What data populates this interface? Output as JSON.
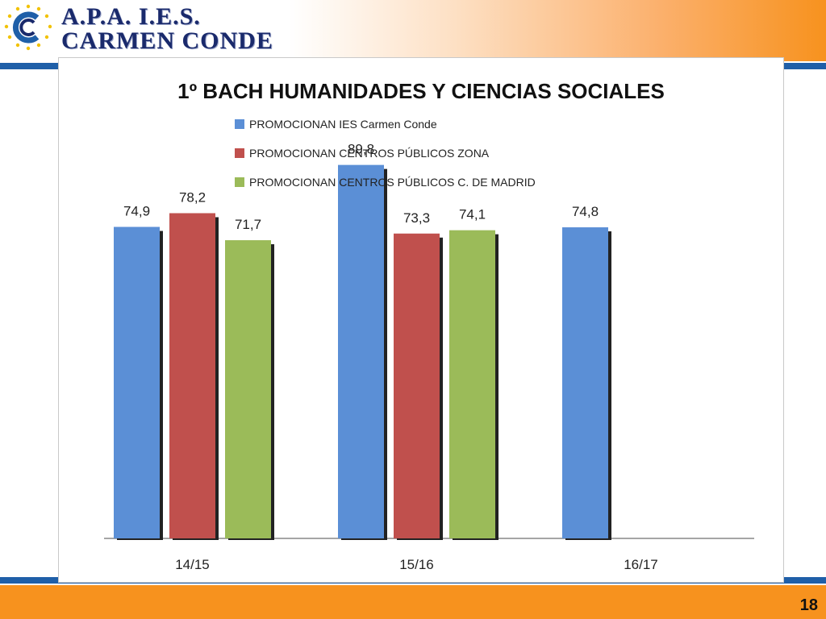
{
  "header": {
    "org_line1": "A.P.A.  I.E.S.",
    "org_line2": "CARMEN CONDE",
    "logo_icon": "apa-ies-logo-icon"
  },
  "footer": {
    "page_number": "18"
  },
  "colors": {
    "series1": "#5b8fd6",
    "series2": "#c0504d",
    "series3": "#9bbb59",
    "header_blue": "#1f5fa8",
    "accent_orange": "#f7921e"
  },
  "chart_data": {
    "type": "bar",
    "title": "1º BACH HUMANIDADES Y CIENCIAS SOCIALES",
    "categories": [
      "14/15",
      "15/16",
      "16/17"
    ],
    "series": [
      {
        "name": "PROMOCIONAN IES Carmen Conde",
        "values": [
          74.9,
          89.8,
          74.8
        ],
        "labels": [
          "74,9",
          "89,8",
          "74,8"
        ]
      },
      {
        "name": "PROMOCIONAN CENTROS PÚBLICOS ZONA",
        "values": [
          78.2,
          73.3,
          null
        ],
        "labels": [
          "78,2",
          "73,3",
          ""
        ]
      },
      {
        "name": "PROMOCIONAN CENTROS PÚBLICOS C. DE MADRID",
        "values": [
          71.7,
          74.1,
          null
        ],
        "labels": [
          "71,7",
          "74,1",
          ""
        ]
      }
    ],
    "ylim": [
      0,
      100
    ],
    "grid": false,
    "legend_position": "top-left"
  }
}
